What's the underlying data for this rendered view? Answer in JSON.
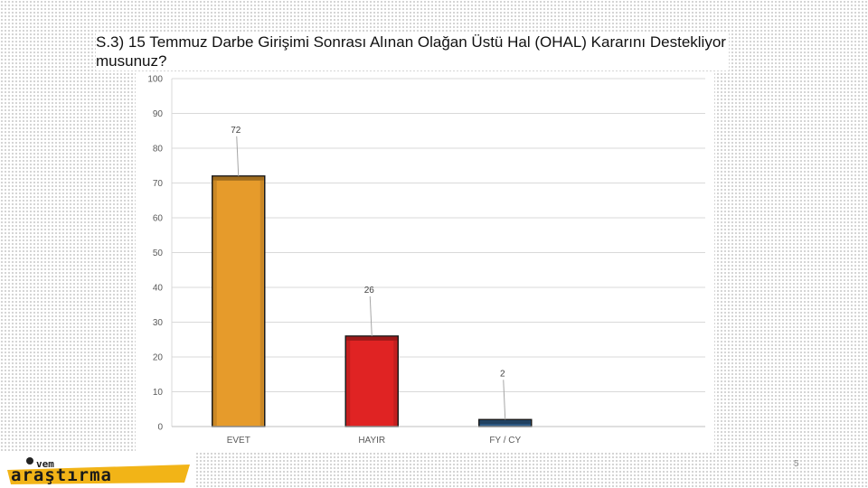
{
  "slide": {
    "title": "S.3) 15 Temmuz Darbe Girişimi Sonrası Alınan Olağan Üstü Hal (OHAL) Kararını Destekliyor musunuz?",
    "page_number": "5",
    "logo_text": "ivem araştırma"
  },
  "chart_data": {
    "type": "bar",
    "title": "",
    "xlabel": "",
    "ylabel": "",
    "categories": [
      "EVET",
      "HAYIR",
      "FY / CY"
    ],
    "values": [
      72,
      26,
      2
    ],
    "ylim": [
      0,
      100
    ],
    "yticks": [
      0,
      10,
      20,
      30,
      40,
      50,
      60,
      70,
      80,
      90,
      100
    ],
    "grid": true,
    "legend": "none",
    "colors": [
      "#E69B2B",
      "#E02323",
      "#2F5D8A"
    ]
  }
}
